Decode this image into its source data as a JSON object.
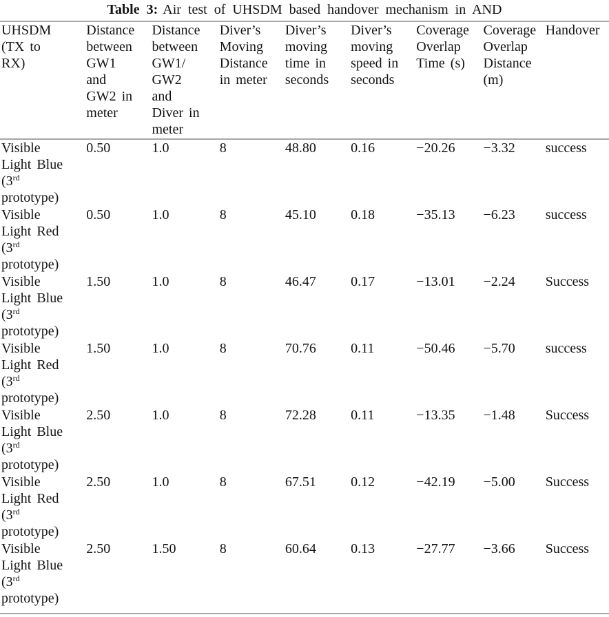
{
  "caption": {
    "label": "Table 3:",
    "text": "Air test of UHSDM based handover mechanism in AND"
  },
  "table": {
    "headers": [
      "UHSDM\n(TX to\nRX)",
      "Distance\nbetween\nGW1\nand\nGW2 in\nmeter",
      "Distance\nbetween\nGW1/\nGW2\nand\nDiver in\nmeter",
      "Diver’s\nMoving\nDistance\nin meter",
      "Diver’s\nmoving\ntime in\nseconds",
      "Diver’s\nmoving\nspeed in\nseconds",
      "Coverage\nOverlap\nTime (s)",
      "Coverage\nOverlap\nDistance\n(m)",
      "Handover"
    ],
    "rows": [
      [
        "Visible\nLight Blue\n(3^{rd}\nprototype)",
        "0.50",
        "1.0",
        "8",
        "48.80",
        "0.16",
        "−20.26",
        "−3.32",
        "success"
      ],
      [
        "Visible\nLight Red\n(3^{rd}\nprototype)",
        "0.50",
        "1.0",
        "8",
        "45.10",
        "0.18",
        "−35.13",
        "−6.23",
        "success"
      ],
      [
        "Visible\nLight Blue\n(3^{rd}\nprototype)",
        "1.50",
        "1.0",
        "8",
        "46.47",
        "0.17",
        "−13.01",
        "−2.24",
        "Success"
      ],
      [
        "Visible\nLight Red\n(3^{rd}\nprototype)",
        "1.50",
        "1.0",
        "8",
        "70.76",
        "0.11",
        "−50.46",
        "−5.70",
        "success"
      ],
      [
        "Visible\nLight Blue\n(3^{rd}\nprototype)",
        "2.50",
        "1.0",
        "8",
        "72.28",
        "0.11",
        "−13.35",
        "−1.48",
        "Success"
      ],
      [
        "Visible\nLight Red\n(3^{rd}\nprototype)",
        "2.50",
        "1.0",
        "8",
        "67.51",
        "0.12",
        "−42.19",
        "−5.00",
        "Success"
      ],
      [
        "Visible\nLight Blue\n(3^{rd}\nprototype)",
        "2.50",
        "1.50",
        "8",
        "60.64",
        "0.13",
        "−27.77",
        "−3.66",
        "Success"
      ]
    ]
  },
  "colors": {
    "rule": "#a6a6a6",
    "text": "#131313",
    "background": "#ffffff"
  }
}
